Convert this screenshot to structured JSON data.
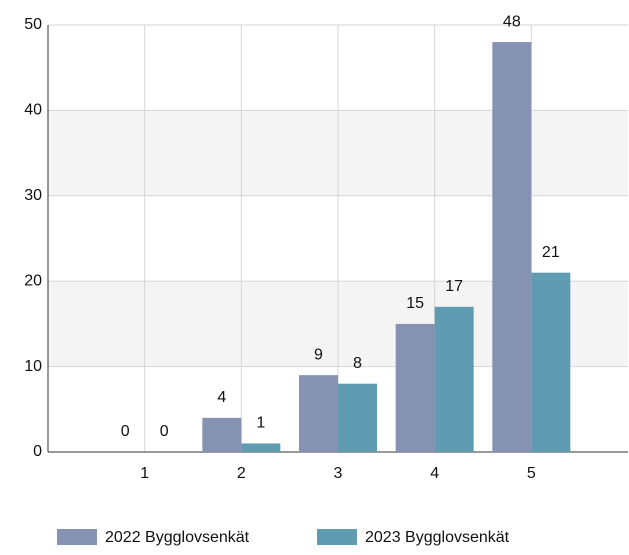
{
  "chart_data": {
    "type": "bar",
    "categories": [
      "1",
      "2",
      "3",
      "4",
      "5"
    ],
    "series": [
      {
        "name": "2022 Bygglovsenkät",
        "color": "#8592b2",
        "values": [
          0,
          4,
          9,
          15,
          48
        ]
      },
      {
        "name": "2023 Bygglovsenkät",
        "color": "#5f9cb2",
        "values": [
          0,
          1,
          8,
          17,
          21
        ]
      }
    ],
    "ylim": [
      0,
      50
    ],
    "yticks": [
      0,
      10,
      20,
      30,
      40,
      50
    ],
    "grid": true
  }
}
